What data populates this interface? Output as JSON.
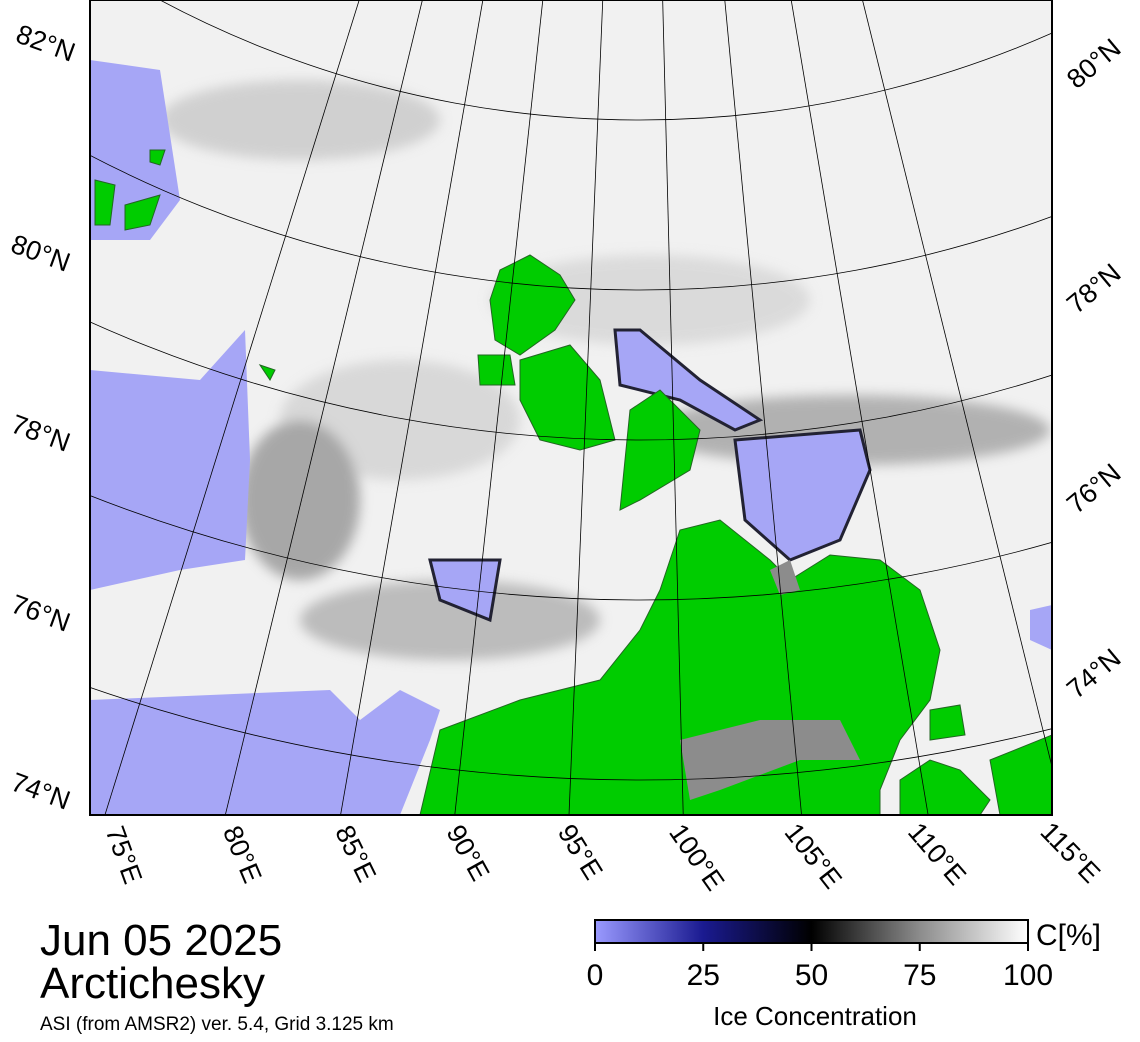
{
  "header": {
    "date": "Jun 05 2025",
    "region": "Arctichesky",
    "source": "ASI (from AMSR2) ver. 5.4,  Grid 3.125 km"
  },
  "map": {
    "lat_labels_left": [
      "82°N",
      "80°N",
      "78°N",
      "76°N",
      "74°N"
    ],
    "lat_labels_right": [
      "80°N",
      "78°N",
      "76°N",
      "74°N"
    ],
    "lon_labels": [
      "75°E",
      "80°E",
      "85°E",
      "90°E",
      "95°E",
      "100°E",
      "105°E",
      "110°E",
      "115°E"
    ]
  },
  "colorbar": {
    "unit": "C[%]",
    "title": "Ice Concentration",
    "range": [
      0,
      100
    ],
    "ticks": [
      0,
      25,
      50,
      75,
      100
    ],
    "colors": [
      "#9a9aff",
      "#1a1a90",
      "#000000",
      "#8c8c8c",
      "#ffffff"
    ]
  }
}
